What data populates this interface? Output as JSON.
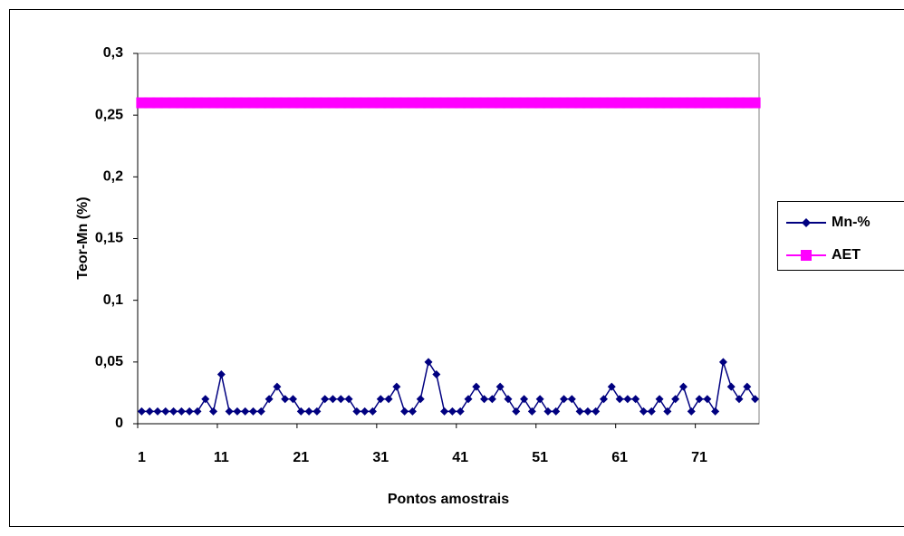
{
  "chart_data": {
    "type": "line",
    "x_label": "Pontos amostrais",
    "y_label": "Teor-Mn (%)",
    "categories": [
      1,
      null,
      null,
      null,
      null,
      null,
      null,
      null,
      null,
      null,
      11,
      null,
      null,
      null,
      null,
      null,
      null,
      null,
      null,
      null,
      21,
      null,
      null,
      null,
      null,
      null,
      null,
      null,
      null,
      null,
      31,
      null,
      null,
      null,
      null,
      null,
      null,
      null,
      null,
      null,
      41,
      null,
      null,
      null,
      null,
      null,
      null,
      null,
      null,
      null,
      51,
      null,
      null,
      null,
      null,
      null,
      null,
      null,
      null,
      null,
      61,
      null,
      null,
      null,
      null,
      null,
      null,
      null,
      null,
      null,
      71,
      null,
      null,
      null,
      null,
      null,
      null,
      null
    ],
    "series": [
      {
        "name": "Mn-%",
        "color": "#000080",
        "marker": "diamond",
        "values": [
          0.01,
          0.01,
          0.01,
          0.01,
          0.01,
          0.01,
          0.01,
          0.01,
          0.02,
          0.01,
          0.04,
          0.01,
          0.01,
          0.01,
          0.01,
          0.01,
          0.02,
          0.03,
          0.02,
          0.02,
          0.01,
          0.01,
          0.01,
          0.02,
          0.02,
          0.02,
          0.02,
          0.01,
          0.01,
          0.01,
          0.02,
          0.02,
          0.03,
          0.01,
          0.01,
          0.02,
          0.05,
          0.04,
          0.01,
          0.01,
          0.01,
          0.02,
          0.03,
          0.02,
          0.02,
          0.03,
          0.02,
          0.01,
          0.02,
          0.01,
          0.02,
          0.01,
          0.01,
          0.02,
          0.02,
          0.01,
          0.01,
          0.01,
          0.02,
          0.03,
          0.02,
          0.02,
          0.02,
          0.01,
          0.01,
          0.02,
          0.01,
          0.02,
          0.03,
          0.01,
          0.02,
          0.02,
          0.01,
          0.05,
          0.03,
          0.02,
          0.03,
          0.02
        ]
      },
      {
        "name": "AET",
        "color": "#ff00ff",
        "marker": "square",
        "values": [
          0.26,
          0.26,
          0.26,
          0.26,
          0.26,
          0.26,
          0.26,
          0.26,
          0.26,
          0.26,
          0.26,
          0.26,
          0.26,
          0.26,
          0.26,
          0.26,
          0.26,
          0.26,
          0.26,
          0.26,
          0.26,
          0.26,
          0.26,
          0.26,
          0.26,
          0.26,
          0.26,
          0.26,
          0.26,
          0.26,
          0.26,
          0.26,
          0.26,
          0.26,
          0.26,
          0.26,
          0.26,
          0.26,
          0.26,
          0.26,
          0.26,
          0.26,
          0.26,
          0.26,
          0.26,
          0.26,
          0.26,
          0.26,
          0.26,
          0.26,
          0.26,
          0.26,
          0.26,
          0.26,
          0.26,
          0.26,
          0.26,
          0.26,
          0.26,
          0.26,
          0.26,
          0.26,
          0.26,
          0.26,
          0.26,
          0.26,
          0.26,
          0.26,
          0.26,
          0.26,
          0.26,
          0.26,
          0.26,
          0.26,
          0.26,
          0.26,
          0.26,
          0.26
        ]
      }
    ],
    "ylim": [
      0,
      0.3
    ],
    "yticks": [
      0,
      {
        "value": 0.05,
        "label": "0,05"
      },
      {
        "value": 0.1,
        "label": "0,1"
      },
      {
        "value": 0.15,
        "label": "0,15"
      },
      {
        "value": 0.2,
        "label": "0,2"
      },
      {
        "value": 0.25,
        "label": "0,25"
      },
      {
        "value": 0.3,
        "label": "0,3"
      }
    ],
    "legend": "right"
  }
}
